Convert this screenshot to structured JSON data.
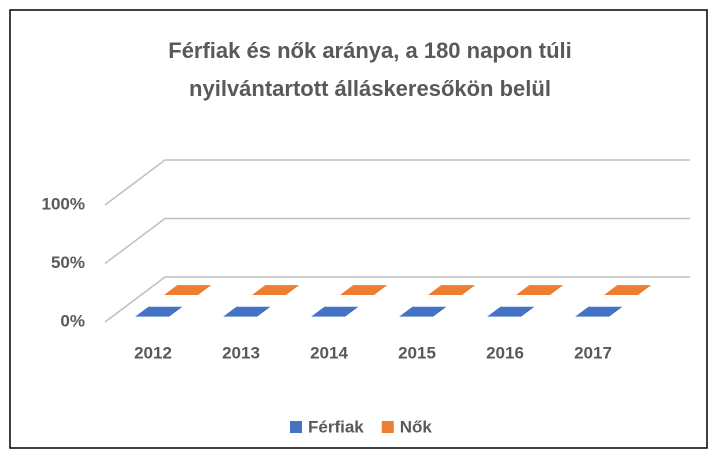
{
  "chart_data": {
    "type": "bar3d",
    "title": "Férfiak és nők aránya, a 180 napon túli nyilvántartott álláskeresőkön belül",
    "categories": [
      "2012",
      "2013",
      "2014",
      "2015",
      "2016",
      "2017"
    ],
    "series": [
      {
        "name": "Férfiak",
        "color": "#4472c4",
        "values": [
          0,
          0,
          0,
          0,
          0,
          0
        ]
      },
      {
        "name": "Nők",
        "color": "#ed7d31",
        "values": [
          0,
          0,
          0,
          0,
          0,
          0
        ]
      }
    ],
    "ylim": [
      0,
      100
    ],
    "yticks": [
      {
        "value": 0,
        "label": "0%"
      },
      {
        "value": 50,
        "label": "50%"
      },
      {
        "value": 100,
        "label": "100%"
      }
    ],
    "grid": true,
    "legend": "bottom"
  }
}
